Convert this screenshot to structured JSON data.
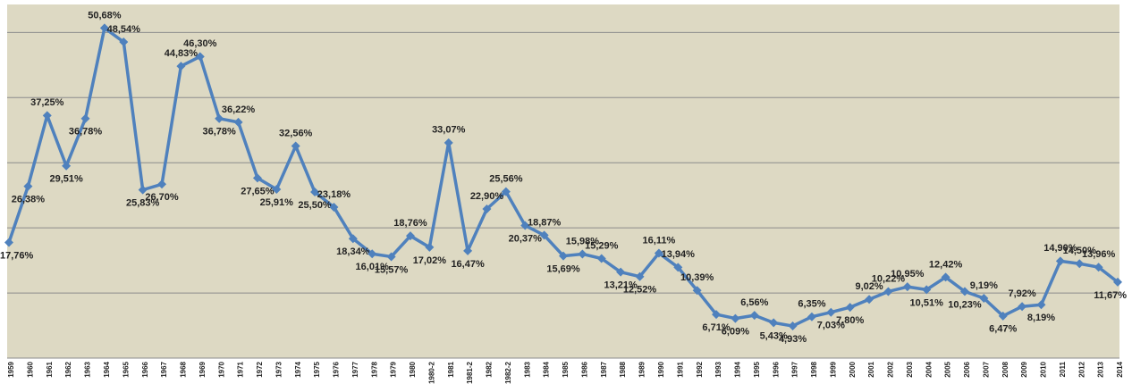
{
  "chart_data": {
    "type": "line",
    "categories": [
      "1959",
      "1960",
      "1961",
      "1962",
      "1963",
      "1964",
      "1965",
      "1966",
      "1967",
      "1968",
      "1969",
      "1970",
      "1971",
      "1972",
      "1973",
      "1974",
      "1975",
      "1976",
      "1977",
      "1978",
      "1979",
      "1980",
      "1980-2",
      "1981",
      "1981-2",
      "1982",
      "1982-2",
      "1983",
      "1984",
      "1985",
      "1986",
      "1987",
      "1988",
      "1989",
      "1990",
      "1991",
      "1992",
      "1993",
      "1994",
      "1995",
      "1996",
      "1997",
      "1998",
      "1999",
      "2000",
      "2001",
      "2002",
      "2003",
      "2004",
      "2005",
      "2006",
      "2007",
      "2008",
      "2009",
      "2010",
      "2011",
      "2012",
      "2013",
      "2014"
    ],
    "series": [
      {
        "color": "#4f81bd",
        "values": [
          17.76,
          26.38,
          37.25,
          29.51,
          36.78,
          50.68,
          48.54,
          25.83,
          26.7,
          44.83,
          46.3,
          36.78,
          36.22,
          27.65,
          25.91,
          32.56,
          25.5,
          23.18,
          18.34,
          16.01,
          15.57,
          18.76,
          17.02,
          33.07,
          16.47,
          22.9,
          25.56,
          20.37,
          18.87,
          15.69,
          15.98,
          15.29,
          13.21,
          12.52,
          16.11,
          13.94,
          10.39,
          6.71,
          6.09,
          6.56,
          5.43,
          4.93,
          6.35,
          7.03,
          7.8,
          9.02,
          10.22,
          10.95,
          10.51,
          12.42,
          10.23,
          9.19,
          6.47,
          7.92,
          8.19,
          14.9,
          14.5,
          13.96,
          11.67
        ],
        "value_labels": [
          "17,76%",
          "26,38%",
          "37,25%",
          "29,51%",
          "36,78%",
          "50,68%",
          "48,54%",
          "25,83%",
          "26,70%",
          "44,83%",
          "46,30%",
          "36,78%",
          "36,22%",
          "27,65%",
          "25,91%",
          "32,56%",
          "25,50%",
          "23,18%",
          "18,34%",
          "16,01%",
          "15,57%",
          "18,76%",
          "17,02%",
          "33,07%",
          "16,47%",
          "22,90%",
          "25,56%",
          "20,37%",
          "18,87%",
          "15,69%",
          "15,98%",
          "15,29%",
          "13,21%",
          "12,52%",
          "16,11%",
          "13,94%",
          "10,39%",
          "6,71%",
          "6,09%",
          "6,56%",
          "5,43%",
          "4,93%",
          "6,35%",
          "7,03%",
          "7,80%",
          "9,02%",
          "10,22%",
          "10,95%",
          "10,51%",
          "12,42%",
          "10,23%",
          "9,19%",
          "6,47%",
          "7,92%",
          "8,19%",
          "14,90%",
          "14,50%",
          "13,96%",
          "11,67%"
        ]
      }
    ],
    "ylim": [
      0,
      54.3
    ],
    "yticks": [
      0,
      10,
      20,
      30,
      40,
      50
    ],
    "grid": true
  }
}
